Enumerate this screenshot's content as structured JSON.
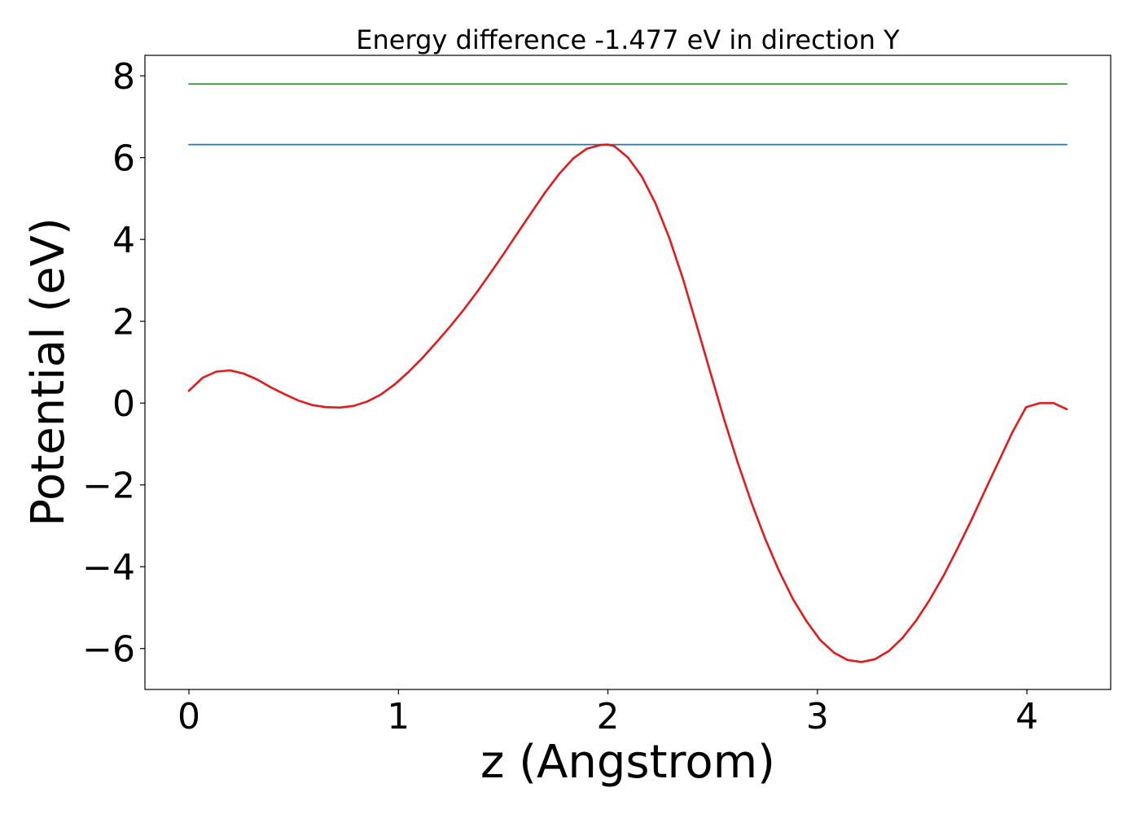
{
  "chart_data": {
    "type": "line",
    "title": "Energy difference -1.477 eV in direction Y",
    "xlabel": "z (Angstrom)",
    "ylabel": "Potential (eV)",
    "xlim": [
      -0.21,
      4.4
    ],
    "ylim": [
      -7.0,
      8.5
    ],
    "xticks": [
      0,
      1,
      2,
      3,
      4
    ],
    "xtick_labels": [
      "0",
      "1",
      "2",
      "3",
      "4"
    ],
    "yticks": [
      -6,
      -4,
      -2,
      0,
      2,
      4,
      6,
      8
    ],
    "ytick_labels": [
      "−6",
      "−4",
      "−2",
      "0",
      "2",
      "4",
      "6",
      "8"
    ],
    "grid": false,
    "series": [
      {
        "color": "#2ca02c",
        "x": [
          0,
          4.19
        ],
        "y": [
          7.8,
          7.8
        ]
      },
      {
        "color": "#1f77b4",
        "x": [
          0,
          4.19
        ],
        "y": [
          6.32,
          6.32
        ]
      },
      {
        "color": "#e31a1c",
        "x": [
          0,
          0.066,
          0.131,
          0.197,
          0.262,
          0.328,
          0.393,
          0.459,
          0.524,
          0.59,
          0.655,
          0.721,
          0.786,
          0.852,
          0.917,
          0.983,
          1.048,
          1.114,
          1.179,
          1.245,
          1.31,
          1.376,
          1.441,
          1.507,
          1.572,
          1.638,
          1.703,
          1.769,
          1.834,
          1.9,
          1.965,
          2.0,
          2.031,
          2.096,
          2.162,
          2.227,
          2.293,
          2.358,
          2.424,
          2.489,
          2.555,
          2.62,
          2.686,
          2.751,
          2.817,
          2.882,
          2.948,
          3.013,
          3.079,
          3.144,
          3.21,
          3.275,
          3.341,
          3.406,
          3.472,
          3.537,
          3.603,
          3.668,
          3.734,
          3.799,
          3.865,
          3.93,
          3.996,
          4.061,
          4.127,
          4.19
        ],
        "y": [
          0.3,
          0.62,
          0.77,
          0.8,
          0.72,
          0.57,
          0.38,
          0.21,
          0.06,
          -0.05,
          -0.1,
          -0.11,
          -0.07,
          0.04,
          0.21,
          0.46,
          0.76,
          1.1,
          1.47,
          1.86,
          2.27,
          2.72,
          3.19,
          3.68,
          4.18,
          4.68,
          5.17,
          5.61,
          5.98,
          6.22,
          6.31,
          6.32,
          6.28,
          6.0,
          5.54,
          4.88,
          4.04,
          3.04,
          1.9,
          0.75,
          -0.4,
          -1.46,
          -2.44,
          -3.32,
          -4.1,
          -4.78,
          -5.33,
          -5.79,
          -6.1,
          -6.28,
          -6.33,
          -6.26,
          -6.06,
          -5.74,
          -5.31,
          -4.8,
          -4.21,
          -3.56,
          -2.87,
          -2.15,
          -1.43,
          -0.72,
          -0.1,
          0.0,
          0.0,
          -0.15
        ]
      }
    ]
  }
}
